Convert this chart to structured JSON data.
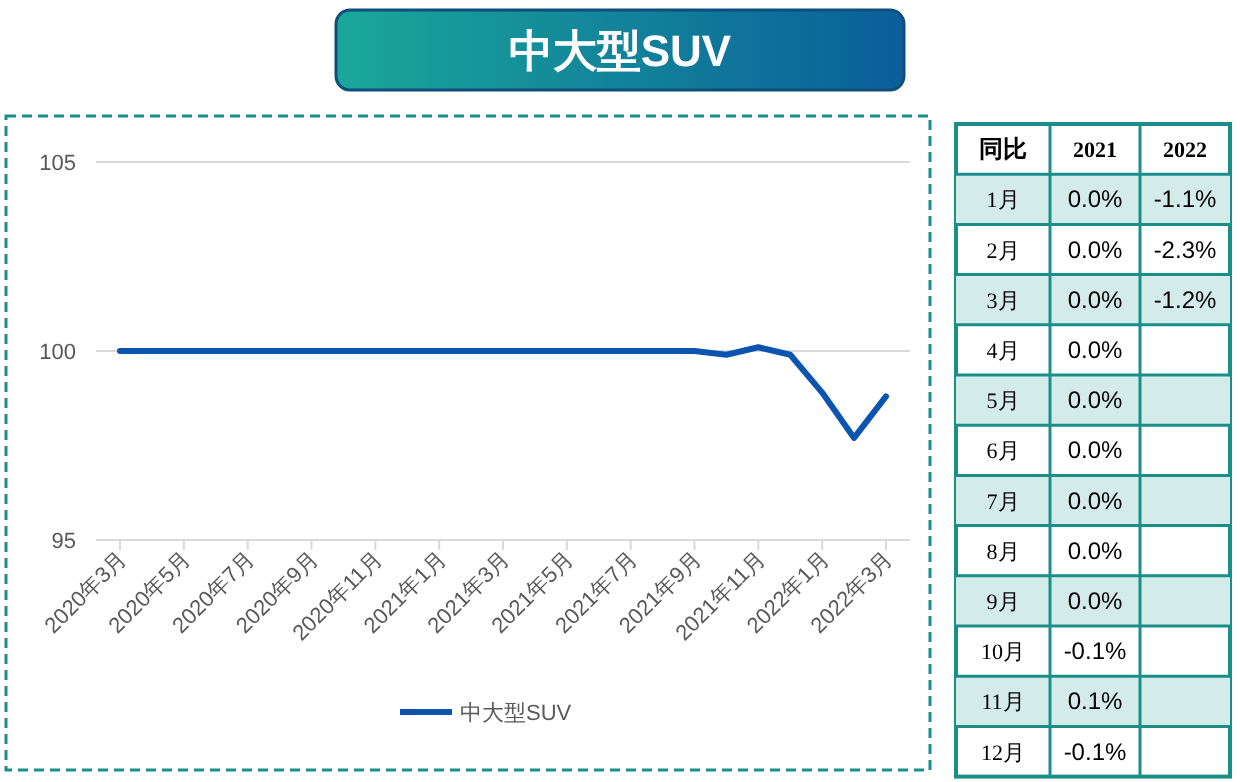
{
  "chart_data": [
    {
      "type": "line",
      "title": "中大型SUV",
      "categories": [
        "2020年3月",
        null,
        "2020年5月",
        null,
        "2020年7月",
        null,
        "2020年9月",
        null,
        "2020年11月",
        null,
        "2021年1月",
        null,
        "2021年3月",
        null,
        "2021年5月",
        null,
        "2021年7月",
        null,
        "2021年9月",
        null,
        "2021年11月",
        null,
        "2022年1月",
        null,
        "2022年3月"
      ],
      "series": [
        {
          "name": "中大型SUV",
          "color": "#0b55b0",
          "values": [
            100,
            100,
            100,
            100,
            100,
            100,
            100,
            100,
            100,
            100,
            100,
            100,
            100,
            100,
            100,
            100,
            100,
            100,
            100,
            99.9,
            100.1,
            99.9,
            98.9,
            97.7,
            98.8
          ]
        }
      ],
      "ylim": [
        95,
        105
      ],
      "yticks": [
        95,
        100,
        105
      ],
      "grid": "y",
      "legend": "bottom",
      "line_style": "solid",
      "marker": "none"
    },
    {
      "type": "heatmap",
      "title": "同比",
      "categories": [
        "2021",
        "2022"
      ],
      "y_categories": [
        "1月",
        "2月",
        "3月",
        "4月",
        "5月",
        "6月",
        "7月",
        "8月",
        "9月",
        "10月",
        "11月",
        "12月"
      ],
      "cells": [
        [
          0.0,
          -1.1
        ],
        [
          0.0,
          -2.3
        ],
        [
          0.0,
          -1.2
        ],
        [
          0.0,
          null
        ],
        [
          0.0,
          null
        ],
        [
          0.0,
          null
        ],
        [
          0.0,
          null
        ],
        [
          0.0,
          null
        ],
        [
          0.0,
          null
        ],
        [
          -0.1,
          null
        ],
        [
          0.1,
          null
        ],
        [
          -0.1,
          null
        ]
      ],
      "cell_labels": [
        [
          "0.0%",
          "-1.1%"
        ],
        [
          "0.0%",
          "-2.3%"
        ],
        [
          "0.0%",
          "-1.2%"
        ],
        [
          "0.0%",
          null
        ],
        [
          "0.0%",
          null
        ],
        [
          "0.0%",
          null
        ],
        [
          "0.0%",
          null
        ],
        [
          "0.0%",
          null
        ],
        [
          "0.0%",
          null
        ],
        [
          "-0.1%",
          null
        ],
        [
          "0.1%",
          null
        ],
        [
          "-0.1%",
          null
        ]
      ]
    }
  ]
}
